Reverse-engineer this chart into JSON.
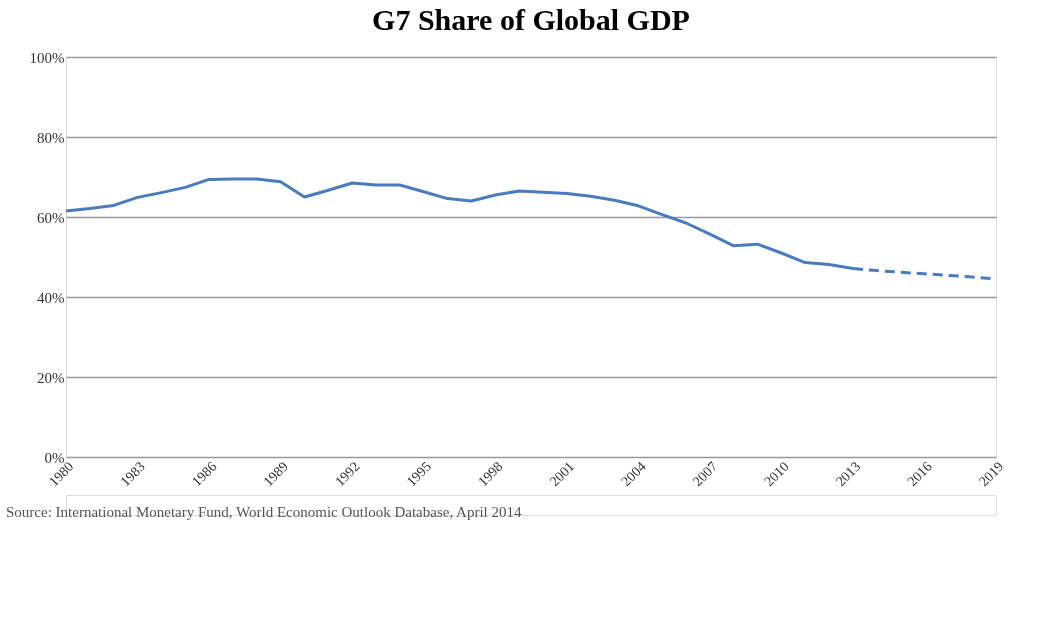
{
  "chart_data": {
    "type": "line",
    "title": "G7 Share of Global GDP",
    "xlim": [
      1980,
      2019
    ],
    "xticks": [
      1980,
      1983,
      1986,
      1989,
      1992,
      1995,
      1998,
      2001,
      2004,
      2007,
      2010,
      2013,
      2016,
      2019
    ],
    "ylim": [
      0,
      100
    ],
    "yticks": [
      {
        "value": 0,
        "label": "0%"
      },
      {
        "value": 20,
        "label": "20%"
      },
      {
        "value": 40,
        "label": "40%"
      },
      {
        "value": 60,
        "label": "60%"
      },
      {
        "value": 80,
        "label": "80%"
      },
      {
        "value": 100,
        "label": "100%"
      }
    ],
    "grid": "y",
    "series": [
      {
        "color": "#4a7bbf",
        "line_style": "solid",
        "x": [
          1980,
          1981,
          1982,
          1983,
          1984,
          1985,
          1986,
          1987,
          1988,
          1989,
          1990,
          1991,
          1992,
          1993,
          1994,
          1995,
          1996,
          1997,
          1998,
          1999,
          2000,
          2001,
          2002,
          2003,
          2004,
          2005,
          2006,
          2007,
          2008,
          2009,
          2010,
          2011,
          2012,
          2013
        ],
        "values": [
          61.5,
          62.1,
          62.9,
          64.9,
          66.1,
          67.4,
          69.4,
          69.5,
          69.5,
          68.8,
          65.0,
          66.7,
          68.5,
          68.0,
          68.0,
          66.3,
          64.6,
          64.0,
          65.5,
          66.5,
          66.2,
          65.9,
          65.2,
          64.2,
          62.8,
          60.6,
          58.5,
          55.7,
          52.8,
          53.2,
          51.0,
          48.6,
          48.1,
          47.1
        ]
      },
      {
        "color": "#4a7bbf",
        "line_style": "dashed",
        "x": [
          2013,
          2014,
          2015,
          2016,
          2017,
          2018,
          2019
        ],
        "values": [
          47.1,
          46.6,
          46.2,
          45.8,
          45.4,
          45.0,
          44.5
        ]
      }
    ],
    "annotations": [
      "Source: International Monetary Fund, World Economic Outlook Database, April 2014"
    ]
  }
}
